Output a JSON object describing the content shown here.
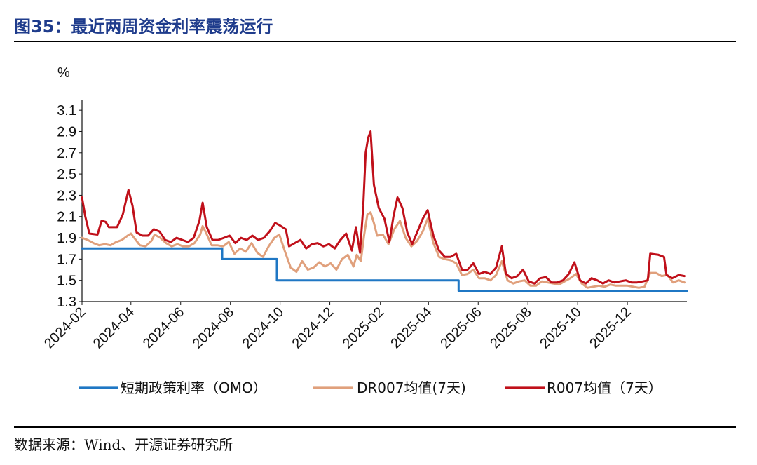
{
  "header": {
    "title": "图35：最近两周资金利率震荡运行"
  },
  "footer": {
    "source": "数据来源：Wind、开源证券研究所"
  },
  "chart_data": {
    "type": "line",
    "ylabel": "%",
    "ylim": [
      1.3,
      3.2
    ],
    "yticks": [
      1.3,
      1.5,
      1.7,
      1.9,
      2.1,
      2.3,
      2.5,
      2.7,
      2.9,
      3.1
    ],
    "ytick_labels": [
      "1.3",
      "1.5",
      "1.7",
      "1.9",
      "2.1",
      "2.3",
      "2.5",
      "2.7",
      "2.9",
      "3.1"
    ],
    "xlim": [
      "2024-02-01",
      "2026-02-12"
    ],
    "xtick_dates": [
      "2024-02-01",
      "2024-04-01",
      "2024-06-01",
      "2024-08-01",
      "2024-10-01",
      "2024-12-01",
      "2025-02-01",
      "2025-04-01",
      "2025-06-01",
      "2025-08-01",
      "2025-10-01",
      "2025-12-01"
    ],
    "xtick_labels": [
      "2024-02",
      "2024-04",
      "2024-06",
      "2024-08",
      "2024-10",
      "2024-12",
      "2025-02",
      "2025-04",
      "2025-06",
      "2025-08",
      "2025-10",
      "2025-12"
    ],
    "grid": false,
    "legend_position": "bottom",
    "series": [
      {
        "name": "短期政策利率（OMO）",
        "color": "#1f77c4",
        "step": true,
        "points": [
          [
            "2024-02-01",
            1.8
          ],
          [
            "2024-07-22",
            1.7
          ],
          [
            "2024-09-27",
            1.5
          ],
          [
            "2025-05-08",
            1.4
          ],
          [
            "2026-02-12",
            1.4
          ]
        ]
      },
      {
        "name": "DR007均值(7天)",
        "color": "#e0a07c",
        "points": [
          [
            "2024-02-01",
            1.9
          ],
          [
            "2024-02-08",
            1.88
          ],
          [
            "2024-02-15",
            1.85
          ],
          [
            "2024-02-22",
            1.83
          ],
          [
            "2024-02-29",
            1.84
          ],
          [
            "2024-03-07",
            1.83
          ],
          [
            "2024-03-14",
            1.86
          ],
          [
            "2024-03-21",
            1.88
          ],
          [
            "2024-03-28",
            1.92
          ],
          [
            "2024-04-01",
            1.94
          ],
          [
            "2024-04-05",
            1.9
          ],
          [
            "2024-04-12",
            1.83
          ],
          [
            "2024-04-19",
            1.82
          ],
          [
            "2024-04-26",
            1.87
          ],
          [
            "2024-04-30",
            1.93
          ],
          [
            "2024-05-07",
            1.9
          ],
          [
            "2024-05-14",
            1.85
          ],
          [
            "2024-05-21",
            1.82
          ],
          [
            "2024-05-28",
            1.84
          ],
          [
            "2024-06-04",
            1.82
          ],
          [
            "2024-06-11",
            1.82
          ],
          [
            "2024-06-18",
            1.85
          ],
          [
            "2024-06-25",
            1.93
          ],
          [
            "2024-06-28",
            2.01
          ],
          [
            "2024-07-02",
            1.95
          ],
          [
            "2024-07-09",
            1.83
          ],
          [
            "2024-07-16",
            1.83
          ],
          [
            "2024-07-23",
            1.82
          ],
          [
            "2024-07-30",
            1.86
          ],
          [
            "2024-08-06",
            1.75
          ],
          [
            "2024-08-13",
            1.8
          ],
          [
            "2024-08-20",
            1.77
          ],
          [
            "2024-08-27",
            1.85
          ],
          [
            "2024-09-03",
            1.76
          ],
          [
            "2024-09-10",
            1.72
          ],
          [
            "2024-09-17",
            1.82
          ],
          [
            "2024-09-24",
            1.9
          ],
          [
            "2024-09-30",
            1.93
          ],
          [
            "2024-10-07",
            1.77
          ],
          [
            "2024-10-14",
            1.62
          ],
          [
            "2024-10-21",
            1.58
          ],
          [
            "2024-10-28",
            1.68
          ],
          [
            "2024-11-04",
            1.6
          ],
          [
            "2024-11-11",
            1.62
          ],
          [
            "2024-11-18",
            1.67
          ],
          [
            "2024-11-25",
            1.63
          ],
          [
            "2024-12-02",
            1.66
          ],
          [
            "2024-12-09",
            1.6
          ],
          [
            "2024-12-16",
            1.7
          ],
          [
            "2024-12-23",
            1.74
          ],
          [
            "2024-12-30",
            1.63
          ],
          [
            "2025-01-03",
            1.74
          ],
          [
            "2025-01-08",
            1.68
          ],
          [
            "2025-01-12",
            1.92
          ],
          [
            "2025-01-16",
            2.12
          ],
          [
            "2025-01-20",
            2.14
          ],
          [
            "2025-01-24",
            2.04
          ],
          [
            "2025-01-28",
            1.92
          ],
          [
            "2025-02-04",
            1.93
          ],
          [
            "2025-02-11",
            1.84
          ],
          [
            "2025-02-18",
            1.98
          ],
          [
            "2025-02-25",
            2.06
          ],
          [
            "2025-03-04",
            1.9
          ],
          [
            "2025-03-11",
            1.82
          ],
          [
            "2025-03-18",
            1.87
          ],
          [
            "2025-03-25",
            1.96
          ],
          [
            "2025-03-31",
            2.08
          ],
          [
            "2025-04-07",
            1.85
          ],
          [
            "2025-04-14",
            1.72
          ],
          [
            "2025-04-21",
            1.7
          ],
          [
            "2025-04-28",
            1.69
          ],
          [
            "2025-05-05",
            1.66
          ],
          [
            "2025-05-12",
            1.55
          ],
          [
            "2025-05-19",
            1.56
          ],
          [
            "2025-05-26",
            1.6
          ],
          [
            "2025-06-02",
            1.52
          ],
          [
            "2025-06-09",
            1.52
          ],
          [
            "2025-06-16",
            1.5
          ],
          [
            "2025-06-23",
            1.55
          ],
          [
            "2025-06-30",
            1.68
          ],
          [
            "2025-07-07",
            1.5
          ],
          [
            "2025-07-14",
            1.47
          ],
          [
            "2025-07-21",
            1.49
          ],
          [
            "2025-07-28",
            1.5
          ],
          [
            "2025-08-04",
            1.45
          ],
          [
            "2025-08-11",
            1.45
          ],
          [
            "2025-08-18",
            1.49
          ],
          [
            "2025-08-25",
            1.48
          ],
          [
            "2025-09-01",
            1.47
          ],
          [
            "2025-09-08",
            1.46
          ],
          [
            "2025-09-15",
            1.49
          ],
          [
            "2025-09-22",
            1.52
          ],
          [
            "2025-09-29",
            1.56
          ],
          [
            "2025-10-06",
            1.47
          ],
          [
            "2025-10-13",
            1.43
          ],
          [
            "2025-10-20",
            1.44
          ],
          [
            "2025-10-27",
            1.45
          ],
          [
            "2025-11-03",
            1.44
          ],
          [
            "2025-11-10",
            1.46
          ],
          [
            "2025-11-17",
            1.45
          ],
          [
            "2025-11-24",
            1.45
          ],
          [
            "2025-12-01",
            1.45
          ],
          [
            "2025-12-08",
            1.44
          ],
          [
            "2025-12-15",
            1.43
          ],
          [
            "2025-12-22",
            1.44
          ],
          [
            "2025-12-29",
            1.57
          ],
          [
            "2026-01-05",
            1.57
          ],
          [
            "2026-01-12",
            1.54
          ],
          [
            "2026-01-19",
            1.55
          ],
          [
            "2026-01-26",
            1.48
          ],
          [
            "2026-02-02",
            1.5
          ],
          [
            "2026-02-09",
            1.48
          ]
        ]
      },
      {
        "name": "R007均值（7天）",
        "color": "#c0101a",
        "points": [
          [
            "2024-02-01",
            2.28
          ],
          [
            "2024-02-05",
            2.1
          ],
          [
            "2024-02-10",
            1.94
          ],
          [
            "2024-02-20",
            1.93
          ],
          [
            "2024-02-25",
            2.06
          ],
          [
            "2024-03-01",
            2.05
          ],
          [
            "2024-03-05",
            2.0
          ],
          [
            "2024-03-15",
            2.0
          ],
          [
            "2024-03-22",
            2.12
          ],
          [
            "2024-03-29",
            2.35
          ],
          [
            "2024-04-03",
            2.2
          ],
          [
            "2024-04-08",
            1.95
          ],
          [
            "2024-04-15",
            1.92
          ],
          [
            "2024-04-22",
            1.92
          ],
          [
            "2024-04-29",
            1.98
          ],
          [
            "2024-05-06",
            1.96
          ],
          [
            "2024-05-13",
            1.88
          ],
          [
            "2024-05-20",
            1.86
          ],
          [
            "2024-05-27",
            1.9
          ],
          [
            "2024-06-03",
            1.88
          ],
          [
            "2024-06-10",
            1.86
          ],
          [
            "2024-06-17",
            1.9
          ],
          [
            "2024-06-24",
            2.06
          ],
          [
            "2024-06-28",
            2.23
          ],
          [
            "2024-07-03",
            2.0
          ],
          [
            "2024-07-10",
            1.88
          ],
          [
            "2024-07-17",
            1.88
          ],
          [
            "2024-07-24",
            1.9
          ],
          [
            "2024-07-31",
            1.92
          ],
          [
            "2024-08-07",
            1.85
          ],
          [
            "2024-08-14",
            1.9
          ],
          [
            "2024-08-21",
            1.88
          ],
          [
            "2024-08-28",
            1.92
          ],
          [
            "2024-09-04",
            1.88
          ],
          [
            "2024-09-11",
            1.9
          ],
          [
            "2024-09-18",
            1.96
          ],
          [
            "2024-09-25",
            2.04
          ],
          [
            "2024-09-30",
            2.02
          ],
          [
            "2024-10-08",
            1.98
          ],
          [
            "2024-10-12",
            1.82
          ],
          [
            "2024-10-19",
            1.85
          ],
          [
            "2024-10-26",
            1.88
          ],
          [
            "2024-11-02",
            1.8
          ],
          [
            "2024-11-09",
            1.84
          ],
          [
            "2024-11-16",
            1.85
          ],
          [
            "2024-11-23",
            1.82
          ],
          [
            "2024-11-30",
            1.84
          ],
          [
            "2024-12-07",
            1.8
          ],
          [
            "2024-12-14",
            1.88
          ],
          [
            "2024-12-21",
            1.94
          ],
          [
            "2024-12-28",
            1.78
          ],
          [
            "2025-01-02",
            2.0
          ],
          [
            "2025-01-07",
            1.76
          ],
          [
            "2025-01-11",
            2.2
          ],
          [
            "2025-01-14",
            2.7
          ],
          [
            "2025-01-17",
            2.84
          ],
          [
            "2025-01-20",
            2.9
          ],
          [
            "2025-01-24",
            2.4
          ],
          [
            "2025-01-30",
            2.18
          ],
          [
            "2025-02-06",
            2.08
          ],
          [
            "2025-02-12",
            1.86
          ],
          [
            "2025-02-17",
            2.1
          ],
          [
            "2025-02-22",
            2.28
          ],
          [
            "2025-02-28",
            2.18
          ],
          [
            "2025-03-06",
            1.95
          ],
          [
            "2025-03-12",
            1.84
          ],
          [
            "2025-03-18",
            1.95
          ],
          [
            "2025-03-25",
            2.08
          ],
          [
            "2025-03-31",
            2.16
          ],
          [
            "2025-04-07",
            1.92
          ],
          [
            "2025-04-14",
            1.78
          ],
          [
            "2025-04-21",
            1.72
          ],
          [
            "2025-04-28",
            1.72
          ],
          [
            "2025-05-05",
            1.75
          ],
          [
            "2025-05-12",
            1.6
          ],
          [
            "2025-05-19",
            1.6
          ],
          [
            "2025-05-26",
            1.66
          ],
          [
            "2025-06-02",
            1.56
          ],
          [
            "2025-06-09",
            1.58
          ],
          [
            "2025-06-16",
            1.56
          ],
          [
            "2025-06-23",
            1.62
          ],
          [
            "2025-06-30",
            1.82
          ],
          [
            "2025-07-05",
            1.56
          ],
          [
            "2025-07-12",
            1.52
          ],
          [
            "2025-07-19",
            1.54
          ],
          [
            "2025-07-26",
            1.6
          ],
          [
            "2025-08-02",
            1.49
          ],
          [
            "2025-08-09",
            1.47
          ],
          [
            "2025-08-16",
            1.52
          ],
          [
            "2025-08-23",
            1.53
          ],
          [
            "2025-08-30",
            1.48
          ],
          [
            "2025-09-06",
            1.48
          ],
          [
            "2025-09-13",
            1.5
          ],
          [
            "2025-09-20",
            1.56
          ],
          [
            "2025-09-27",
            1.67
          ],
          [
            "2025-10-04",
            1.5
          ],
          [
            "2025-10-11",
            1.47
          ],
          [
            "2025-10-18",
            1.52
          ],
          [
            "2025-10-25",
            1.5
          ],
          [
            "2025-11-01",
            1.47
          ],
          [
            "2025-11-08",
            1.5
          ],
          [
            "2025-11-15",
            1.48
          ],
          [
            "2025-11-22",
            1.49
          ],
          [
            "2025-11-29",
            1.5
          ],
          [
            "2025-12-06",
            1.48
          ],
          [
            "2025-12-13",
            1.48
          ],
          [
            "2025-12-20",
            1.49
          ],
          [
            "2025-12-26",
            1.5
          ],
          [
            "2025-12-29",
            1.75
          ],
          [
            "2026-01-08",
            1.74
          ],
          [
            "2026-01-15",
            1.72
          ],
          [
            "2026-01-18",
            1.55
          ],
          [
            "2026-01-25",
            1.52
          ],
          [
            "2026-02-02",
            1.55
          ],
          [
            "2026-02-09",
            1.54
          ]
        ]
      }
    ]
  }
}
